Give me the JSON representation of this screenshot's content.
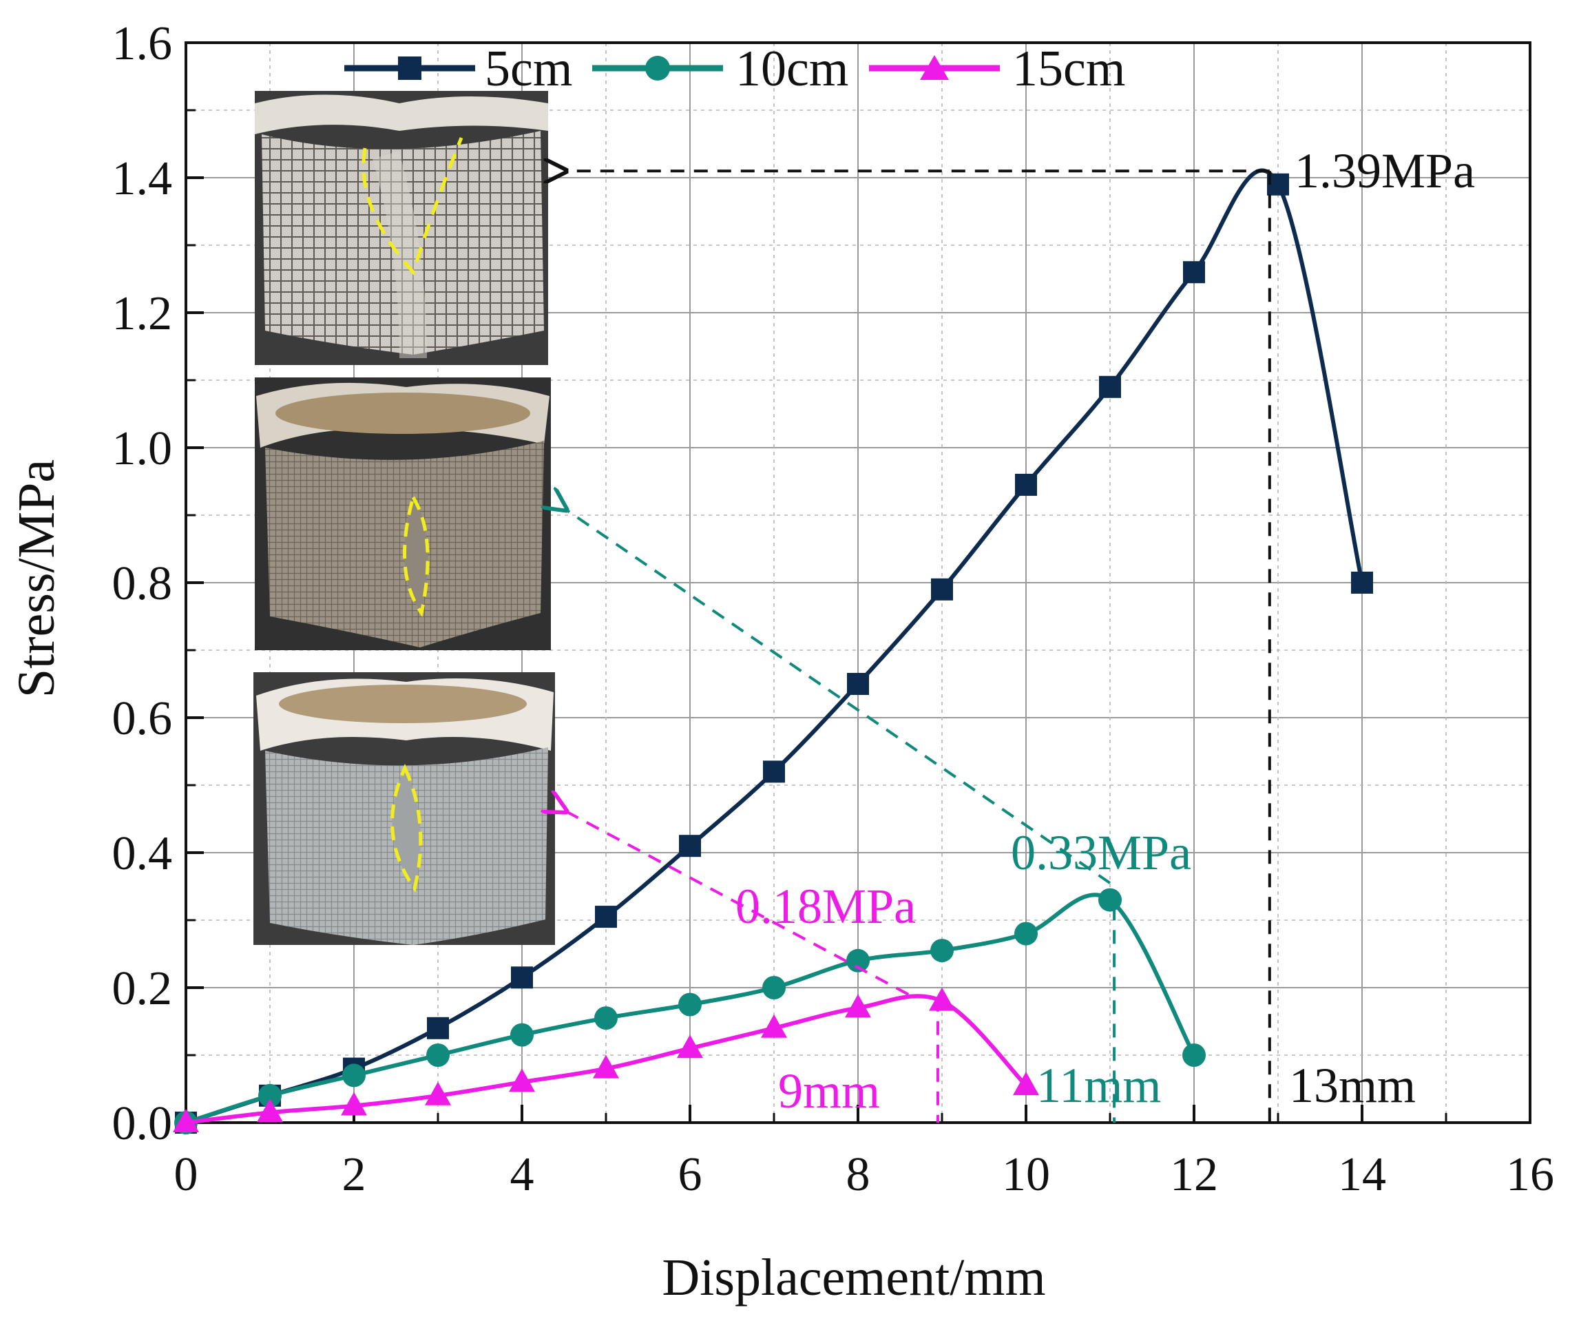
{
  "chart_data": {
    "type": "line",
    "title": "",
    "xlabel": "Displacement/mm",
    "ylabel": "Stress/MPa",
    "xlim": [
      0,
      16
    ],
    "ylim": [
      0,
      1.6
    ],
    "xticks": [
      "0",
      "2",
      "4",
      "6",
      "8",
      "10",
      "12",
      "14",
      "16"
    ],
    "yticks": [
      "0.0",
      "0.2",
      "0.4",
      "0.6",
      "0.8",
      "1.0",
      "1.2",
      "1.4",
      "1.6"
    ],
    "grid": true,
    "legend_position": "top",
    "series": [
      {
        "name": "5cm",
        "color": "#0d2b4e",
        "marker": "square",
        "x": [
          0,
          1,
          2,
          3,
          4,
          5,
          6,
          7,
          8,
          9,
          10,
          11,
          12,
          13,
          14
        ],
        "values": [
          0.0,
          0.04,
          0.08,
          0.14,
          0.215,
          0.305,
          0.41,
          0.52,
          0.65,
          0.79,
          0.945,
          1.09,
          1.26,
          1.39,
          0.8
        ]
      },
      {
        "name": "10cm",
        "color": "#0f8a7c",
        "marker": "circle",
        "x": [
          0,
          1,
          2,
          3,
          4,
          5,
          6,
          7,
          8,
          9,
          10,
          11,
          12
        ],
        "values": [
          0.0,
          0.04,
          0.07,
          0.1,
          0.13,
          0.155,
          0.175,
          0.2,
          0.24,
          0.255,
          0.28,
          0.33,
          0.1
        ]
      },
      {
        "name": "15cm",
        "color": "#ee1ae8",
        "marker": "triangle",
        "x": [
          0,
          1,
          2,
          3,
          4,
          5,
          6,
          7,
          8,
          9,
          10
        ],
        "values": [
          0.0,
          0.015,
          0.025,
          0.04,
          0.06,
          0.08,
          0.11,
          0.14,
          0.17,
          0.18,
          0.055
        ]
      }
    ],
    "annotations": [
      {
        "text": "1.39MPa",
        "color": "#111111"
      },
      {
        "text": "13mm",
        "color": "#111111"
      },
      {
        "text": "0.33MPa",
        "color": "#0f8a7c"
      },
      {
        "text": "11mm",
        "color": "#0f8a7c"
      },
      {
        "text": "0.18MPa",
        "color": "#ee1ae8"
      },
      {
        "text": "9mm",
        "color": "#ee1ae8"
      }
    ],
    "inset_photos": [
      {
        "name": "photo-5cm-specimen",
        "mark_color": "#f2ee1e"
      },
      {
        "name": "photo-10cm-specimen",
        "mark_color": "#f2ee1e"
      },
      {
        "name": "photo-15cm-specimen",
        "mark_color": "#f2ee1e"
      }
    ]
  }
}
